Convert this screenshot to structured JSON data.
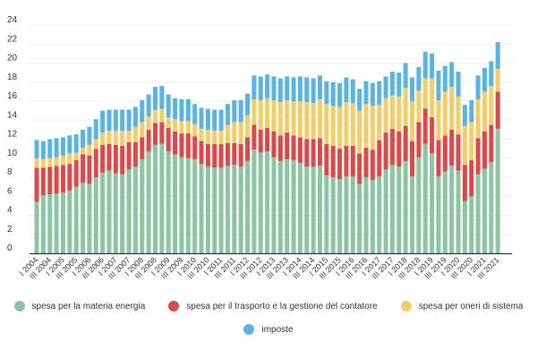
{
  "chart_data": {
    "type": "bar",
    "stacked": true,
    "title": "",
    "xlabel": "",
    "ylabel": "",
    "ylim": [
      0,
      24
    ],
    "y_ticks": [
      0,
      2,
      4,
      6,
      8,
      10,
      12,
      14,
      16,
      18,
      20,
      22,
      24
    ],
    "grid": true,
    "legend_position": "bottom",
    "x_range": [
      "I 2004",
      "III 2021"
    ],
    "x_tick_labels": [
      "I 2004",
      "III 2004",
      "I 2005",
      "III 2005",
      "I 2006",
      "III 2006",
      "I 2007",
      "III 2007",
      "I 2008",
      "III 2008",
      "I 2009",
      "III 2009",
      "I 2010",
      "III 2010",
      "I 2011",
      "III 2011",
      "I 2012",
      "III 2012",
      "I 2013",
      "III 2013",
      "I 2014",
      "III 2014",
      "I 2015",
      "III 2015",
      "I 2016",
      "III 2016",
      "I 2017",
      "III 2017",
      "I 2018",
      "III 2018",
      "I 2019",
      "III 2019",
      "I 2020",
      "III 2020",
      "I 2021",
      "III 2021"
    ],
    "series": [
      {
        "name": "spesa per la materia energia",
        "color": "#8dc5a4",
        "values": [
          5.4,
          6.1,
          6.2,
          6.3,
          6.4,
          6.6,
          7.0,
          7.4,
          7.3,
          8.0,
          8.5,
          8.7,
          8.4,
          8.3,
          8.8,
          9.1,
          9.9,
          10.7,
          11.4,
          11.5,
          10.7,
          10.4,
          10.1,
          10.0,
          9.9,
          9.4,
          9.1,
          9.0,
          9.0,
          9.2,
          9.3,
          9.1,
          9.7,
          10.9,
          10.6,
          10.7,
          10.1,
          9.7,
          9.9,
          9.8,
          9.5,
          9.1,
          9.1,
          9.2,
          8.2,
          8.0,
          7.8,
          8.1,
          8.1,
          7.3,
          8.0,
          7.7,
          8.1,
          8.8,
          9.3,
          9.1,
          9.7,
          8.1,
          10.1,
          11.5,
          10.5,
          8.1,
          8.6,
          9.2,
          8.7,
          5.5,
          6.0,
          8.3,
          8.9,
          9.6,
          13.1
        ]
      },
      {
        "name": "spesa per il trasporto e la gestione del contatore",
        "color": "#d94b4b",
        "values": [
          3.6,
          2.9,
          2.9,
          2.9,
          2.9,
          2.8,
          2.8,
          3.0,
          3.0,
          3.0,
          2.9,
          2.8,
          3.0,
          3.0,
          2.9,
          2.6,
          2.3,
          2.3,
          2.3,
          2.3,
          2.5,
          2.4,
          2.5,
          2.6,
          2.4,
          2.4,
          2.4,
          2.5,
          2.5,
          2.4,
          2.3,
          2.4,
          2.5,
          2.6,
          2.4,
          2.5,
          2.7,
          2.7,
          2.8,
          2.6,
          2.7,
          2.9,
          2.9,
          2.9,
          3.3,
          3.3,
          3.2,
          3.2,
          3.2,
          3.2,
          3.1,
          3.2,
          3.8,
          3.9,
          3.8,
          3.7,
          3.7,
          3.7,
          3.7,
          3.7,
          3.8,
          3.8,
          3.8,
          3.8,
          3.8,
          3.8,
          3.8,
          3.8,
          3.9,
          3.9,
          3.9
        ]
      },
      {
        "name": "spesa per oneri di sistema",
        "color": "#f2cd6c",
        "values": [
          1.0,
          0.9,
          0.9,
          0.9,
          1.0,
          1.1,
          0.8,
          0.7,
          1.1,
          1.0,
          1.3,
          1.4,
          1.5,
          1.6,
          1.2,
          1.6,
          1.6,
          1.4,
          1.4,
          1.4,
          1.1,
          1.3,
          1.3,
          1.3,
          1.3,
          1.3,
          1.5,
          1.4,
          1.4,
          1.9,
          2.2,
          2.3,
          2.3,
          2.7,
          3.1,
          3.1,
          3.3,
          3.5,
          3.4,
          3.6,
          3.8,
          3.9,
          3.8,
          4.1,
          4.2,
          4.2,
          4.4,
          4.6,
          4.5,
          4.5,
          4.6,
          4.6,
          3.7,
          3.6,
          3.5,
          3.7,
          4.0,
          4.2,
          3.3,
          3.2,
          4.1,
          4.2,
          4.6,
          4.5,
          4.0,
          4.1,
          4.0,
          4.1,
          4.2,
          4.1,
          2.4
        ]
      },
      {
        "name": "imposte",
        "color": "#5ab3e0",
        "values": [
          1.9,
          1.9,
          2.0,
          2.0,
          1.9,
          1.9,
          1.9,
          1.9,
          1.9,
          2.1,
          2.3,
          2.2,
          2.2,
          2.2,
          2.2,
          2.1,
          2.3,
          2.3,
          2.4,
          2.4,
          2.4,
          2.2,
          2.3,
          2.3,
          2.1,
          2.2,
          2.2,
          2.2,
          2.2,
          2.2,
          2.3,
          2.3,
          2.3,
          2.5,
          2.5,
          2.5,
          2.5,
          2.5,
          2.5,
          2.5,
          2.6,
          2.6,
          2.6,
          2.5,
          2.4,
          2.5,
          2.5,
          2.6,
          2.5,
          2.3,
          2.4,
          2.4,
          2.5,
          2.3,
          2.5,
          2.5,
          2.6,
          2.5,
          2.5,
          2.8,
          2.6,
          3.1,
          2.7,
          2.6,
          2.6,
          2.2,
          2.3,
          2.5,
          2.5,
          2.6,
          2.8
        ]
      }
    ]
  }
}
